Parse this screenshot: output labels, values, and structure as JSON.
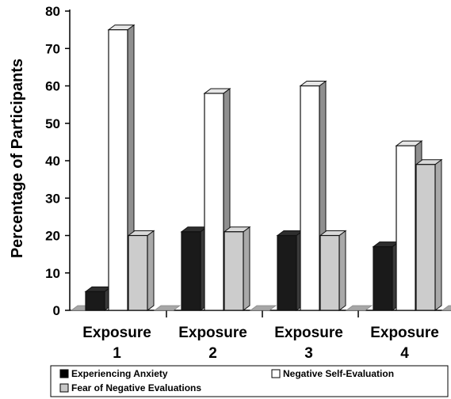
{
  "chart_data": {
    "type": "bar",
    "title": "",
    "xlabel": "",
    "ylabel": "Percentage of Participants",
    "ylim": [
      0,
      80
    ],
    "yticks": [
      "0",
      "10",
      "20",
      "30",
      "40",
      "50",
      "60",
      "70",
      "80"
    ],
    "categories": [
      {
        "line1": "Exposure",
        "line2": "1"
      },
      {
        "line1": "Exposure",
        "line2": "2"
      },
      {
        "line1": "Exposure",
        "line2": "3"
      },
      {
        "line1": "Exposure",
        "line2": "4"
      }
    ],
    "series": [
      {
        "name": "Experiencing Anxiety",
        "values": [
          5,
          21,
          20,
          17
        ],
        "color": "#1a1a1a",
        "swatch": "#000000"
      },
      {
        "name": "Negative Self-Evaluation",
        "values": [
          75,
          58,
          60,
          44
        ],
        "color": "#ffffff",
        "swatch": "#ffffff"
      },
      {
        "name": "Fear of Negative Evaluations",
        "values": [
          20,
          21,
          20,
          39
        ],
        "color": "#cccccc",
        "swatch": "#c8c8c8"
      }
    ],
    "grid": false,
    "legend_position": "bottom",
    "style": "3d"
  }
}
